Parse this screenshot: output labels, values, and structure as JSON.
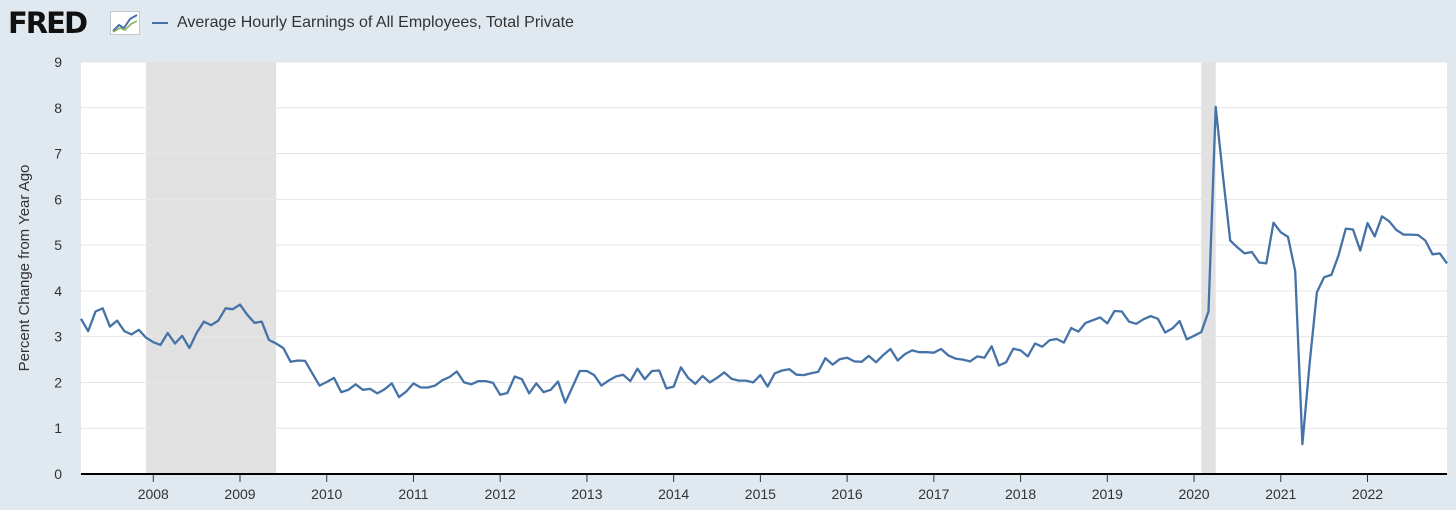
{
  "header": {
    "logo_text": "FRED",
    "logo_icon": "chart-trend-icon"
  },
  "chart_data": {
    "type": "line",
    "title": "",
    "xlabel": "",
    "ylabel": "Percent Change from Year Ago",
    "ylim": [
      0,
      9
    ],
    "yticks": [
      "0",
      "1",
      "2",
      "3",
      "4",
      "5",
      "6",
      "7",
      "8",
      "9"
    ],
    "xlim": [
      "2007-03-01",
      "2022-12-01"
    ],
    "xticks": [
      "2008",
      "2009",
      "2010",
      "2011",
      "2012",
      "2013",
      "2014",
      "2015",
      "2016",
      "2017",
      "2018",
      "2019",
      "2020",
      "2021",
      "2022"
    ],
    "grid": true,
    "legend_position": "top-left",
    "recessions": [
      {
        "start": "2007-12-01",
        "end": "2009-06-01"
      },
      {
        "start": "2020-02-01",
        "end": "2020-04-01"
      }
    ],
    "series": [
      {
        "name": "Average Hourly Earnings of All Employees, Total Private",
        "color": "#4572a7",
        "start": "2007-03-01",
        "frequency": "monthly",
        "values": [
          3.39,
          3.12,
          3.55,
          3.62,
          3.22,
          3.35,
          3.12,
          3.05,
          3.15,
          2.98,
          2.88,
          2.82,
          3.08,
          2.85,
          3.02,
          2.75,
          3.08,
          3.33,
          3.25,
          3.35,
          3.62,
          3.6,
          3.7,
          3.48,
          3.3,
          3.33,
          2.93,
          2.85,
          2.75,
          2.45,
          2.48,
          2.47,
          2.2,
          1.93,
          2.01,
          2.1,
          1.79,
          1.84,
          1.96,
          1.84,
          1.86,
          1.76,
          1.85,
          1.98,
          1.68,
          1.8,
          1.98,
          1.89,
          1.89,
          1.93,
          2.05,
          2.12,
          2.24,
          2.0,
          1.96,
          2.03,
          2.03,
          1.99,
          1.73,
          1.77,
          2.13,
          2.07,
          1.76,
          1.98,
          1.79,
          1.84,
          2.02,
          1.56,
          1.9,
          2.25,
          2.25,
          2.16,
          1.93,
          2.04,
          2.13,
          2.17,
          2.03,
          2.3,
          2.07,
          2.25,
          2.26,
          1.87,
          1.91,
          2.33,
          2.1,
          1.97,
          2.14,
          2.0,
          2.1,
          2.22,
          2.08,
          2.04,
          2.04,
          2.0,
          2.16,
          1.91,
          2.2,
          2.26,
          2.29,
          2.17,
          2.16,
          2.2,
          2.23,
          2.53,
          2.39,
          2.51,
          2.54,
          2.46,
          2.45,
          2.58,
          2.44,
          2.6,
          2.73,
          2.48,
          2.62,
          2.7,
          2.66,
          2.66,
          2.65,
          2.73,
          2.59,
          2.52,
          2.5,
          2.46,
          2.57,
          2.54,
          2.79,
          2.37,
          2.44,
          2.74,
          2.7,
          2.57,
          2.85,
          2.78,
          2.92,
          2.95,
          2.87,
          3.19,
          3.11,
          3.3,
          3.36,
          3.42,
          3.29,
          3.56,
          3.55,
          3.33,
          3.28,
          3.38,
          3.45,
          3.39,
          3.09,
          3.18,
          3.34,
          2.94,
          3.02,
          3.1,
          3.55,
          8.02,
          6.52,
          5.1,
          4.95,
          4.82,
          4.85,
          4.62,
          4.6,
          5.49,
          5.28,
          5.18,
          4.43,
          0.65,
          2.43,
          3.97,
          4.3,
          4.35,
          4.78,
          5.36,
          5.34,
          4.88,
          5.48,
          5.19,
          5.63,
          5.52,
          5.33,
          5.23,
          5.23,
          5.22,
          5.1,
          4.8,
          4.82,
          4.6
        ]
      }
    ]
  }
}
